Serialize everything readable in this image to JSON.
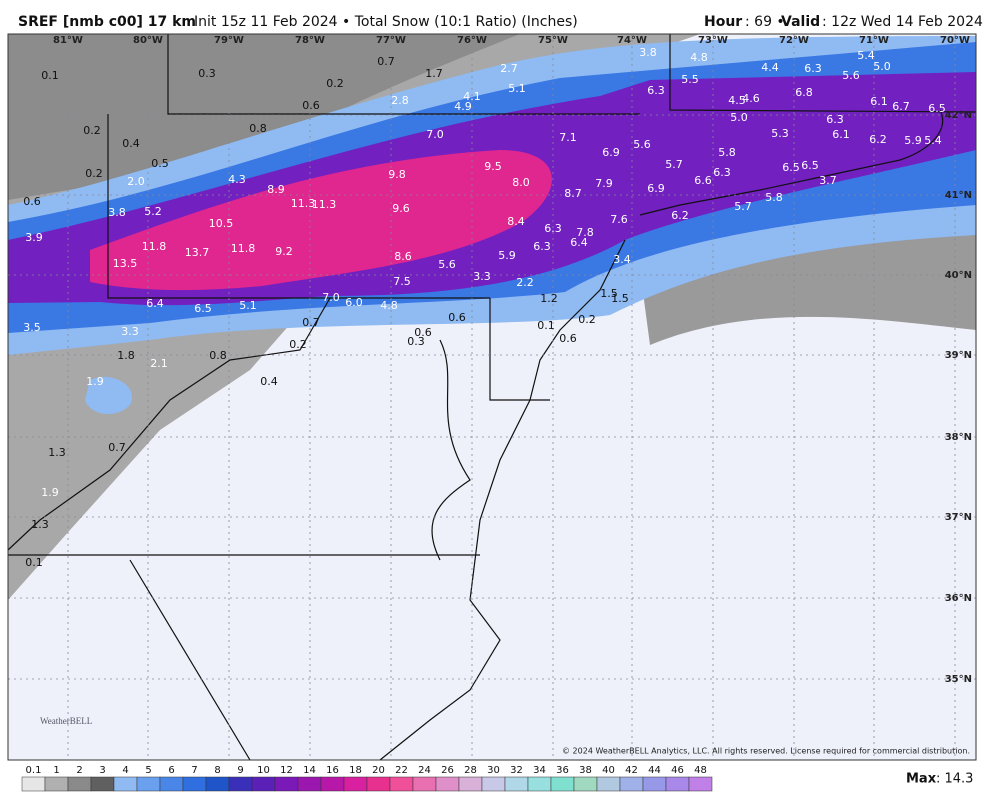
{
  "header": {
    "title": "SREF [nmb c00] 17 km",
    "subtitle": "Init 15z 11 Feb 2024 • Total Snow (10:1 Ratio) (Inches)",
    "hour_label": "Hour",
    "hour_text": ": 69 • ",
    "valid_label": "Valid",
    "valid_text": ": 12z Wed 14 Feb 2024"
  },
  "map": {
    "longitudes": [
      "81°W",
      "80°W",
      "79°W",
      "78°W",
      "77°W",
      "76°W",
      "75°W",
      "74°W",
      "73°W",
      "72°W",
      "71°W",
      "70°W"
    ],
    "latitudes": [
      "42°N",
      "41°N",
      "40°N",
      "39°N",
      "38°N",
      "37°N",
      "36°N",
      "35°N"
    ],
    "snow_labels": [
      "0.1",
      "0.3",
      "0.2",
      "0.7",
      "1.7",
      "2.7",
      "3.8",
      "4.8",
      "0.6",
      "2.8",
      "4.1",
      "4.9",
      "5.1",
      "5.5",
      "4.4",
      "6.3",
      "5.6",
      "5.4",
      "5.0",
      "6.3",
      "4.5",
      "4.6",
      "6.8",
      "6.1",
      "6.7",
      "6.5",
      "0.2",
      "0.4",
      "0.8",
      "7.0",
      "7.1",
      "5.0",
      "5.3",
      "6.3",
      "6.1",
      "6.2",
      "5.9",
      "5.4",
      "0.5",
      "6.9",
      "5.6",
      "5.8",
      "5.7",
      "0.2",
      "2.0",
      "4.3",
      "9.5",
      "9.8",
      "8.0",
      "6.3",
      "6.6",
      "6.5",
      "6.5",
      "3.7",
      "7.9",
      "8.7",
      "6.9",
      "0.6",
      "8.9",
      "11.3",
      "11.3",
      "3.8",
      "5.2",
      "9.6",
      "5.7",
      "5.8",
      "6.2",
      "7.6",
      "10.5",
      "8.4",
      "6.3",
      "7.8",
      "3.9",
      "6.4",
      "6.3",
      "11.8",
      "13.7",
      "11.8",
      "9.2",
      "8.6",
      "5.9",
      "3.4",
      "13.5",
      "5.6",
      "3.3",
      "7.5",
      "2.2",
      "1.2",
      "1.5",
      "1.5",
      "6.4",
      "6.5",
      "5.1",
      "7.0",
      "6.0",
      "4.8",
      "0.7",
      "0.6",
      "0.1",
      "0.2",
      "0.6",
      "0.3",
      "0.6",
      "3.5",
      "3.3",
      "0.2",
      "1.8",
      "0.8",
      "2.1",
      "0.4",
      "1.9",
      "0.7",
      "1.3",
      "1.9",
      "1.3",
      "0.1"
    ],
    "copyright": "© 2024 WeatherBELL Analytics, LLC. All rights reserved. License required for commercial distribution.",
    "logo": "WeatherBELL"
  },
  "colorbar": {
    "labels": [
      "0.1",
      "1",
      "2",
      "3",
      "4",
      "5",
      "6",
      "7",
      "8",
      "9",
      "10",
      "12",
      "14",
      "16",
      "18",
      "20",
      "22",
      "24",
      "26",
      "28",
      "30",
      "32",
      "34",
      "36",
      "38",
      "40",
      "42",
      "44",
      "46",
      "48"
    ],
    "max_label": "Max",
    "max_text": ": 14.3"
  }
}
